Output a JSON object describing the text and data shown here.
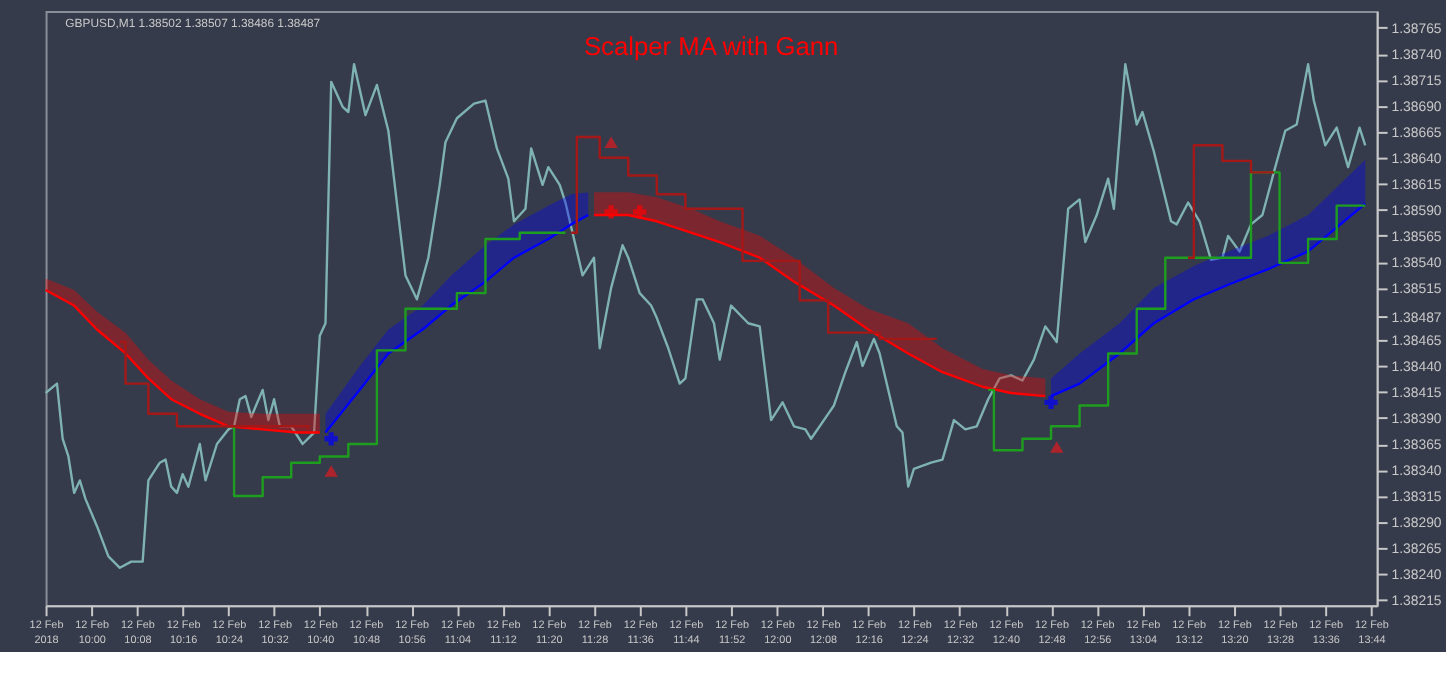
{
  "chart_data": {
    "type": "line",
    "title": "Scalper MA with Gann",
    "annotations": [
      "GBPUSD,M1 1.38502 1.38507 1.38486 1.38487"
    ],
    "xlim": [
      "2018-02-12T09:52",
      "2018-02-12T13:45"
    ],
    "xticks": [
      {
        "value": "2018-02-12T09:52",
        "label": "12 Feb 2018"
      },
      {
        "value": "2018-02-12T10:00",
        "label": "12 Feb 10:00"
      },
      {
        "value": "2018-02-12T10:08",
        "label": "12 Feb 10:08"
      },
      {
        "value": "2018-02-12T10:16",
        "label": "12 Feb 10:16"
      },
      {
        "value": "2018-02-12T10:24",
        "label": "12 Feb 10:24"
      },
      {
        "value": "2018-02-12T10:32",
        "label": "12 Feb 10:32"
      },
      {
        "value": "2018-02-12T10:40",
        "label": "12 Feb 10:40"
      },
      {
        "value": "2018-02-12T10:48",
        "label": "12 Feb 10:48"
      },
      {
        "value": "2018-02-12T10:56",
        "label": "12 Feb 10:56"
      },
      {
        "value": "2018-02-12T11:04",
        "label": "12 Feb 11:04"
      },
      {
        "value": "2018-02-12T11:12",
        "label": "12 Feb 11:12"
      },
      {
        "value": "2018-02-12T11:20",
        "label": "12 Feb 11:20"
      },
      {
        "value": "2018-02-12T11:28",
        "label": "12 Feb 11:28"
      },
      {
        "value": "2018-02-12T11:36",
        "label": "12 Feb 11:36"
      },
      {
        "value": "2018-02-12T11:44",
        "label": "12 Feb 11:44"
      },
      {
        "value": "2018-02-12T11:52",
        "label": "12 Feb 11:52"
      },
      {
        "value": "2018-02-12T12:00",
        "label": "12 Feb 12:00"
      },
      {
        "value": "2018-02-12T12:08",
        "label": "12 Feb 12:08"
      },
      {
        "value": "2018-02-12T12:16",
        "label": "12 Feb 12:16"
      },
      {
        "value": "2018-02-12T12:24",
        "label": "12 Feb 12:24"
      },
      {
        "value": "2018-02-12T12:32",
        "label": "12 Feb 12:32"
      },
      {
        "value": "2018-02-12T12:40",
        "label": "12 Feb 12:40"
      },
      {
        "value": "2018-02-12T12:48",
        "label": "12 Feb 12:48"
      },
      {
        "value": "2018-02-12T12:56",
        "label": "12 Feb 12:56"
      },
      {
        "value": "2018-02-12T13:04",
        "label": "12 Feb 13:04"
      },
      {
        "value": "2018-02-12T13:12",
        "label": "12 Feb 13:12"
      },
      {
        "value": "2018-02-12T13:20",
        "label": "12 Feb 13:20"
      },
      {
        "value": "2018-02-12T13:28",
        "label": "12 Feb 13:28"
      },
      {
        "value": "2018-02-12T13:36",
        "label": "12 Feb 13:36"
      },
      {
        "value": "2018-02-12T13:44",
        "label": "12 Feb 13:44"
      }
    ],
    "ylim": [
      1.3821,
      1.38781
    ],
    "yticks": [
      1.38215,
      {
        "value": 1.3824,
        "label": "1.38240"
      },
      1.38265,
      {
        "value": 1.3829,
        "label": "1.38290"
      },
      1.38315,
      {
        "value": 1.3834,
        "label": "1.38340"
      },
      1.38365,
      {
        "value": 1.3839,
        "label": "1.38390"
      },
      1.38415,
      {
        "value": 1.3844,
        "label": "1.38440"
      },
      1.38465,
      1.38487,
      1.38515,
      {
        "value": 1.3854,
        "label": "1.38540"
      },
      1.38565,
      {
        "value": 1.3859,
        "label": "1.38590"
      },
      1.38615,
      {
        "value": 1.3864,
        "label": "1.38640"
      },
      1.38665,
      {
        "value": 1.3869,
        "label": "1.38690"
      },
      1.38715,
      {
        "value": 1.3874,
        "label": "1.38740"
      },
      1.38765
    ],
    "grid": false,
    "line_style": "solid",
    "series": [
      {
        "type": "line",
        "color": "#7fb2b2",
        "x": [
          "2018-02-12T09:52",
          "2018-02-12T09:54",
          "2018-02-12T09:55",
          "2018-02-12T09:56",
          "2018-02-12T09:57",
          "2018-02-12T09:58",
          "2018-02-12T09:59",
          "2018-02-12T10:01",
          "2018-02-12T10:03",
          "2018-02-12T10:05",
          "2018-02-12T10:07",
          "2018-02-12T10:09",
          "2018-02-12T10:10",
          "2018-02-12T10:12",
          "2018-02-12T10:13",
          "2018-02-12T10:14",
          "2018-02-12T10:15",
          "2018-02-12T10:16",
          "2018-02-12T10:17",
          "2018-02-12T10:19",
          "2018-02-12T10:20",
          "2018-02-12T10:22",
          "2018-02-12T10:24",
          "2018-02-12T10:25",
          "2018-02-12T10:26",
          "2018-02-12T10:27",
          "2018-02-12T10:28",
          "2018-02-12T10:30",
          "2018-02-12T10:31",
          "2018-02-12T10:32",
          "2018-02-12T10:33",
          "2018-02-12T10:35",
          "2018-02-12T10:37",
          "2018-02-12T10:39",
          "2018-02-12T10:40",
          "2018-02-12T10:41",
          "2018-02-12T10:42",
          "2018-02-12T10:44",
          "2018-02-12T10:45",
          "2018-02-12T10:46",
          "2018-02-12T10:48",
          "2018-02-12T10:50",
          "2018-02-12T10:52",
          "2018-02-12T10:55",
          "2018-02-12T10:57",
          "2018-02-12T10:59",
          "2018-02-12T11:01",
          "2018-02-12T11:02",
          "2018-02-12T11:04",
          "2018-02-12T11:07",
          "2018-02-12T11:09",
          "2018-02-12T11:11",
          "2018-02-12T11:13",
          "2018-02-12T11:14",
          "2018-02-12T11:16",
          "2018-02-12T11:17",
          "2018-02-12T11:19",
          "2018-02-12T11:20",
          "2018-02-12T11:22",
          "2018-02-12T11:23",
          "2018-02-12T11:26",
          "2018-02-12T11:28",
          "2018-02-12T11:29",
          "2018-02-12T11:31",
          "2018-02-12T11:33",
          "2018-02-12T11:34",
          "2018-02-12T11:36",
          "2018-02-12T11:38",
          "2018-02-12T11:39",
          "2018-02-12T11:41",
          "2018-02-12T11:43",
          "2018-02-12T11:44",
          "2018-02-12T11:46",
          "2018-02-12T11:47",
          "2018-02-12T11:49",
          "2018-02-12T11:50",
          "2018-02-12T11:52",
          "2018-02-12T11:55",
          "2018-02-12T11:57",
          "2018-02-12T11:59",
          "2018-02-12T12:01",
          "2018-02-12T12:03",
          "2018-02-12T12:05",
          "2018-02-12T12:06",
          "2018-02-12T12:09",
          "2018-02-12T12:10",
          "2018-02-12T12:12",
          "2018-02-12T12:14",
          "2018-02-12T12:15",
          "2018-02-12T12:17",
          "2018-02-12T12:18",
          "2018-02-12T12:21",
          "2018-02-12T12:22",
          "2018-02-12T12:23",
          "2018-02-12T12:24",
          "2018-02-12T12:27",
          "2018-02-12T12:29",
          "2018-02-12T12:31",
          "2018-02-12T12:33",
          "2018-02-12T12:35",
          "2018-02-12T12:37",
          "2018-02-12T12:39",
          "2018-02-12T12:41",
          "2018-02-12T12:43",
          "2018-02-12T12:45",
          "2018-02-12T12:47",
          "2018-02-12T12:49",
          "2018-02-12T12:51",
          "2018-02-12T12:53",
          "2018-02-12T12:54",
          "2018-02-12T12:56",
          "2018-02-12T12:58",
          "2018-02-12T12:59",
          "2018-02-12T13:01",
          "2018-02-12T13:03",
          "2018-02-12T13:04",
          "2018-02-12T13:06",
          "2018-02-12T13:09",
          "2018-02-12T13:10",
          "2018-02-12T13:12",
          "2018-02-12T13:14",
          "2018-02-12T13:16",
          "2018-02-12T13:18",
          "2018-02-12T13:19",
          "2018-02-12T13:21",
          "2018-02-12T13:23",
          "2018-02-12T13:25",
          "2018-02-12T13:27",
          "2018-02-12T13:29",
          "2018-02-12T13:31",
          "2018-02-12T13:33",
          "2018-02-12T13:34",
          "2018-02-12T13:36",
          "2018-02-12T13:38",
          "2018-02-12T13:40",
          "2018-02-12T13:42",
          "2018-02-12T13:43"
        ],
        "values": [
          1.38414,
          1.38423,
          1.3837,
          1.38353,
          1.38318,
          1.3833,
          1.38312,
          1.38286,
          1.38257,
          1.38246,
          1.38252,
          1.38252,
          1.3833,
          1.38347,
          1.3835,
          1.38324,
          1.38318,
          1.38336,
          1.38324,
          1.38365,
          1.3833,
          1.38365,
          1.38379,
          1.38382,
          1.38408,
          1.38411,
          1.38391,
          1.38417,
          1.38388,
          1.38408,
          1.38382,
          1.38382,
          1.38365,
          1.38376,
          1.38469,
          1.38481,
          1.38713,
          1.38689,
          1.38684,
          1.3873,
          1.38681,
          1.3871,
          1.38666,
          1.38527,
          1.38504,
          1.38544,
          1.38614,
          1.38655,
          1.38678,
          1.38692,
          1.38695,
          1.38649,
          1.3862,
          1.38579,
          1.38591,
          1.38649,
          1.38614,
          1.38631,
          1.38614,
          1.38597,
          1.38527,
          1.38544,
          1.38457,
          1.38515,
          1.38556,
          1.38544,
          1.3851,
          1.38498,
          1.38486,
          1.38457,
          1.38423,
          1.38428,
          1.38504,
          1.38504,
          1.38481,
          1.38446,
          1.38498,
          1.38481,
          1.38478,
          1.38388,
          1.38405,
          1.38382,
          1.38379,
          1.3837,
          1.38394,
          1.38402,
          1.38434,
          1.38463,
          1.3844,
          1.38466,
          1.38452,
          1.38382,
          1.38376,
          1.38324,
          1.38341,
          1.38347,
          1.3835,
          1.38388,
          1.38379,
          1.38382,
          1.38408,
          1.38428,
          1.38431,
          1.38426,
          1.38446,
          1.38478,
          1.38463,
          1.38591,
          1.386,
          1.38559,
          1.38585,
          1.3862,
          1.38591,
          1.3873,
          1.38672,
          1.38684,
          1.38646,
          1.38579,
          1.38576,
          1.38597,
          1.38579,
          1.38542,
          1.38544,
          1.38565,
          1.3855,
          1.38576,
          1.38585,
          1.38626,
          1.38666,
          1.38672,
          1.3873,
          1.38695,
          1.38652,
          1.38669,
          1.38631,
          1.38669,
          1.38652
        ]
      },
      {
        "type": "line",
        "color": "#ff0000",
        "x": [
          "2018-02-12T09:52",
          "2018-02-12T09:57",
          "2018-02-12T10:01",
          "2018-02-12T10:06",
          "2018-02-12T10:10",
          "2018-02-12T10:14",
          "2018-02-12T10:19",
          "2018-02-12T10:24",
          "2018-02-12T10:30",
          "2018-02-12T10:36",
          "2018-02-12T10:40",
          "2018-02-12T11:00",
          "2018-02-12T11:28",
          "2018-02-12T11:34",
          "2018-02-12T11:39",
          "2018-02-12T11:45",
          "2018-02-12T11:50",
          "2018-02-12T11:57",
          "2018-02-12T12:03",
          "2018-02-12T12:10",
          "2018-02-12T12:16",
          "2018-02-12T12:23",
          "2018-02-12T12:29",
          "2018-02-12T12:36",
          "2018-02-12T12:41",
          "2018-02-12T12:47"
        ],
        "values": [
          1.38513,
          1.38498,
          1.38475,
          1.38452,
          1.38428,
          1.38408,
          1.38394,
          1.38382,
          1.38379,
          1.38376,
          1.38376,
          null,
          1.38585,
          1.38585,
          1.38579,
          1.38568,
          1.38559,
          1.38544,
          1.38521,
          1.38498,
          1.38475,
          1.38452,
          1.38434,
          1.3842,
          1.38414,
          1.38411
        ],
        "lower": [
          1.38513,
          1.38498,
          1.38475,
          1.38452,
          1.38428,
          1.38408,
          1.38394,
          1.38382,
          1.38379,
          1.38376,
          1.38376,
          null,
          1.38585,
          1.38585,
          1.38579,
          1.38568,
          1.38559,
          1.38544,
          1.38521,
          1.38498,
          1.38475,
          1.38452,
          1.38434,
          1.3842,
          1.38414,
          1.38411
        ],
        "upper": [
          1.38524,
          1.38513,
          1.38492,
          1.38472,
          1.38446,
          1.38426,
          1.38408,
          1.38396,
          1.38394,
          1.38394,
          1.38394,
          null,
          1.38607,
          1.38607,
          1.38602,
          1.38591,
          1.38579,
          1.38565,
          1.38544,
          1.38515,
          1.38495,
          1.38481,
          1.38457,
          1.38437,
          1.38431,
          1.38428
        ]
      },
      {
        "type": "line",
        "color": "#0000ff",
        "x": [
          "2018-02-12T10:41",
          "2018-02-12T10:47",
          "2018-02-12T10:52",
          "2018-02-12T10:58",
          "2018-02-12T11:03",
          "2018-02-12T11:09",
          "2018-02-12T11:14",
          "2018-02-12T11:20",
          "2018-02-12T11:24",
          "2018-02-12T11:27",
          "2018-02-12T12:00",
          "2018-02-12T12:48",
          "2018-02-12T12:53",
          "2018-02-12T13:00",
          "2018-02-12T13:06",
          "2018-02-12T13:13",
          "2018-02-12T13:19",
          "2018-02-12T13:26",
          "2018-02-12T13:33",
          "2018-02-12T13:43"
        ],
        "values": [
          1.38376,
          1.38417,
          1.38452,
          1.38475,
          1.38498,
          1.38521,
          1.38544,
          1.38562,
          1.38576,
          1.38585,
          null,
          1.38411,
          1.38423,
          1.38452,
          1.38481,
          1.38504,
          1.38518,
          1.38533,
          1.3855,
          1.38596
        ],
        "lower": [
          1.38376,
          1.38417,
          1.38452,
          1.38475,
          1.38498,
          1.38521,
          1.38544,
          1.38562,
          1.38576,
          1.38585,
          null,
          1.38411,
          1.38423,
          1.38452,
          1.38481,
          1.38504,
          1.38518,
          1.38533,
          1.3855,
          1.38596
        ],
        "upper": [
          1.38394,
          1.3844,
          1.38475,
          1.38498,
          1.38527,
          1.38556,
          1.38576,
          1.38594,
          1.38605,
          1.38607,
          null,
          1.38428,
          1.38452,
          1.38481,
          1.38515,
          1.38536,
          1.3855,
          1.38565,
          1.38585,
          1.38638
        ]
      },
      {
        "type": "step",
        "color": "#1e9e1e",
        "x": [
          "2018-02-12T10:24",
          "2018-02-12T10:25",
          "2018-02-12T10:30",
          "2018-02-12T10:35",
          "2018-02-12T10:40",
          "2018-02-12T10:45",
          "2018-02-12T10:50",
          "2018-02-12T10:55",
          "2018-02-12T11:04",
          "2018-02-12T11:09",
          "2018-02-12T11:15",
          "2018-02-12T11:23",
          "2018-02-12T12:00",
          "2018-02-12T12:37",
          "2018-02-12T12:38",
          "2018-02-12T12:43",
          "2018-02-12T12:48",
          "2018-02-12T12:53",
          "2018-02-12T12:58",
          "2018-02-12T13:03",
          "2018-02-12T13:08",
          "2018-02-12T13:23",
          "2018-02-12T13:28",
          "2018-02-12T13:33",
          "2018-02-12T13:38",
          "2018-02-12T13:43"
        ],
        "values": [
          1.38382,
          1.38315,
          1.38333,
          1.38347,
          1.38353,
          1.38365,
          1.38455,
          1.38495,
          1.3851,
          1.38562,
          1.38568,
          1.38568,
          null,
          1.38417,
          1.38359,
          1.3837,
          1.38382,
          1.38402,
          1.38452,
          1.38495,
          1.38544,
          1.38626,
          1.38539,
          1.38562,
          1.38594,
          1.38594
        ]
      },
      {
        "type": "step",
        "color": "#a51818",
        "x": [
          "2018-02-12T10:05",
          "2018-02-12T10:06",
          "2018-02-12T10:10",
          "2018-02-12T10:15",
          "2018-02-12T10:38",
          "2018-02-12T11:00",
          "2018-02-12T11:24",
          "2018-02-12T11:25",
          "2018-02-12T11:29",
          "2018-02-12T11:34",
          "2018-02-12T11:39",
          "2018-02-12T11:44",
          "2018-02-12T11:54",
          "2018-02-12T12:04",
          "2018-02-12T12:09",
          "2018-02-12T12:18",
          "2018-02-12T12:28",
          "2018-02-12T12:50",
          "2018-02-12T13:12",
          "2018-02-12T13:13",
          "2018-02-12T13:18",
          "2018-02-12T13:23",
          "2018-02-12T13:27"
        ],
        "values": [
          1.38463,
          1.38423,
          1.38394,
          1.38382,
          1.38379,
          null,
          1.38568,
          1.3866,
          1.3864,
          1.38623,
          1.38605,
          1.38591,
          1.38541,
          1.38503,
          1.38472,
          1.38466,
          1.38466,
          null,
          1.38544,
          1.38652,
          1.38637,
          1.38626,
          1.38626
        ]
      },
      {
        "type": "scatter",
        "marker": "triangle",
        "color": "#e0191e",
        "x": [
          "2018-02-12T10:42",
          "2018-02-12T11:31",
          "2018-02-12T12:49"
        ],
        "values": [
          1.38339,
          1.38655,
          1.38362
        ]
      },
      {
        "type": "scatter",
        "marker": "cross",
        "color": "#0000ff",
        "x": [
          "2018-02-12T10:42",
          "2018-02-12T12:48"
        ],
        "values": [
          1.3837,
          1.38405
        ]
      },
      {
        "type": "scatter",
        "marker": "cross",
        "color": "#ff0000",
        "x": [
          "2018-02-12T11:31",
          "2018-02-12T11:36"
        ],
        "values": [
          1.38588,
          1.38588
        ]
      }
    ]
  }
}
